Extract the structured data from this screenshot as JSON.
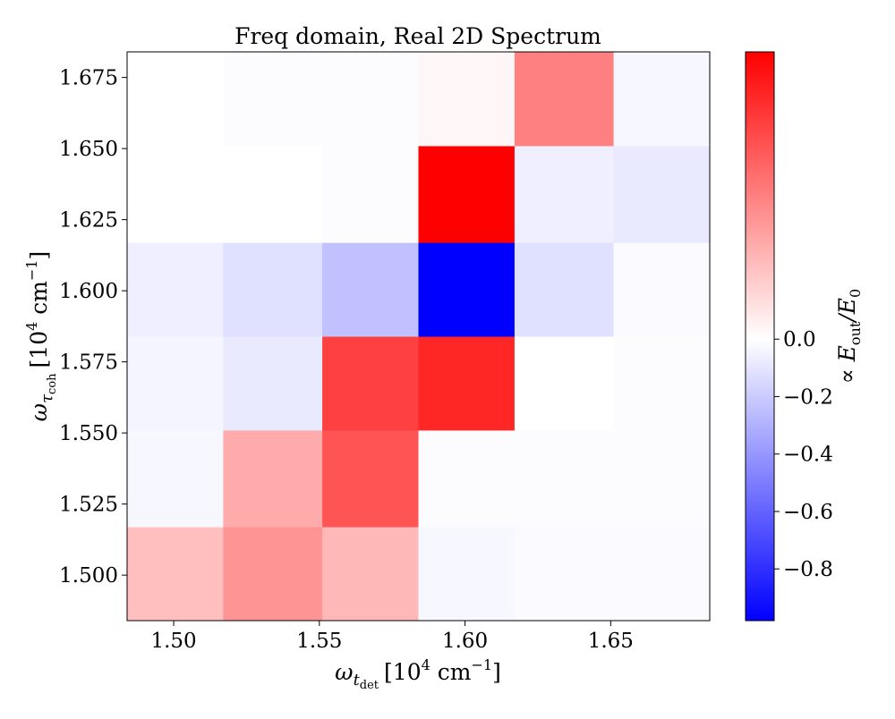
{
  "chart_data": {
    "type": "heatmap",
    "title": "Freq domain, Real 2D Spectrum",
    "xlabel": {
      "base": "ω",
      "sub": "t",
      "subsub": "det",
      "unit_open": "[10",
      "unit_exp": "4",
      "unit_mid": " cm",
      "unit_exp2": "−1",
      "unit_close": "]"
    },
    "ylabel": {
      "base": "ω",
      "sub": "τ",
      "subsub": "coh",
      "unit_open": "[10",
      "unit_exp": "4",
      "unit_mid": " cm",
      "unit_exp2": "−1",
      "unit_close": "]"
    },
    "x_centers": [
      1.5,
      1.55,
      1.6,
      1.65
    ],
    "y_centers": [
      1.5,
      1.525,
      1.55,
      1.575,
      1.6,
      1.625,
      1.65,
      1.675
    ],
    "x_range": [
      1.484,
      1.684
    ],
    "y_range": [
      1.484,
      1.684
    ],
    "x_edges": [
      1.484,
      1.517,
      1.551,
      1.584,
      1.617,
      1.651,
      1.684
    ],
    "y_edges": [
      1.484,
      1.517,
      1.551,
      1.584,
      1.617,
      1.651,
      1.684
    ],
    "x_ticks": [
      "1.50",
      "1.55",
      "1.60",
      "1.65"
    ],
    "y_ticks": [
      "1.500",
      "1.525",
      "1.550",
      "1.575",
      "1.600",
      "1.625",
      "1.650",
      "1.675"
    ],
    "values": [
      [
        0.25,
        0.42,
        0.28,
        -0.03,
        -0.02,
        -0.02
      ],
      [
        -0.03,
        0.33,
        0.67,
        -0.01,
        -0.01,
        -0.01
      ],
      [
        -0.04,
        -0.08,
        0.75,
        0.85,
        0.0,
        -0.01
      ],
      [
        -0.06,
        -0.12,
        -0.24,
        -0.98,
        -0.12,
        -0.02
      ],
      [
        0.0,
        0.0,
        -0.01,
        1.0,
        -0.06,
        -0.08
      ],
      [
        0.0,
        -0.01,
        -0.01,
        0.03,
        0.5,
        -0.03
      ]
    ],
    "zlim": [
      -0.98,
      1.0
    ],
    "colormap": [
      "#0000ff",
      "#ffffff",
      "#ff0000"
    ],
    "colorbar": {
      "label": "∝ E",
      "label_sub": "out",
      "label_tail": "/E",
      "label_sub2": "0",
      "ticks": [
        {
          "value": 0.0,
          "label": "0.0"
        },
        {
          "value": -0.2,
          "label": "−0.2"
        },
        {
          "value": -0.4,
          "label": "−0.4"
        },
        {
          "value": -0.6,
          "label": "−0.6"
        },
        {
          "value": -0.8,
          "label": "−0.8"
        }
      ]
    }
  }
}
